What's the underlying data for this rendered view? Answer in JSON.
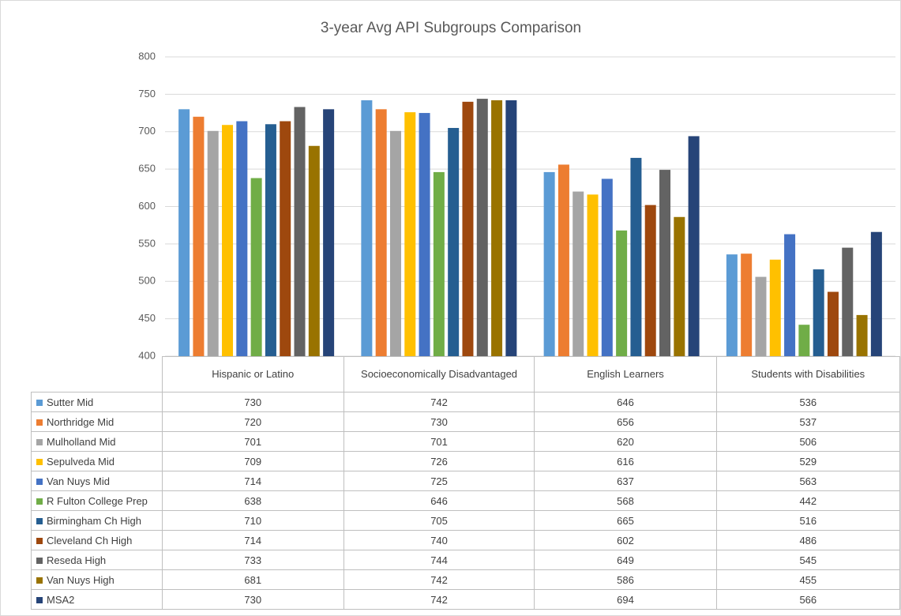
{
  "chart_data": {
    "type": "bar",
    "title": "3-year Avg API Subgroups Comparison",
    "categories": [
      "Hispanic or Latino",
      "Socioeconomically Disadvantaged",
      "English Learners",
      "Students with Disabilities"
    ],
    "ylim": [
      400,
      800
    ],
    "yticks": [
      400,
      450,
      500,
      550,
      600,
      650,
      700,
      750,
      800
    ],
    "grid": true,
    "series": [
      {
        "name": "Sutter Mid",
        "color": "#5b9bd5",
        "values": [
          730,
          742,
          646,
          536
        ]
      },
      {
        "name": "Northridge Mid",
        "color": "#ed7d31",
        "values": [
          720,
          730,
          656,
          537
        ]
      },
      {
        "name": "Mulholland Mid",
        "color": "#a5a5a5",
        "values": [
          701,
          701,
          620,
          506
        ]
      },
      {
        "name": "Sepulveda Mid",
        "color": "#ffc000",
        "values": [
          709,
          726,
          616,
          529
        ]
      },
      {
        "name": "Van Nuys Mid",
        "color": "#4472c4",
        "values": [
          714,
          725,
          637,
          563
        ]
      },
      {
        "name": "R Fulton College Prep",
        "color": "#70ad47",
        "values": [
          638,
          646,
          568,
          442
        ]
      },
      {
        "name": "Birmingham Ch High",
        "color": "#255e91",
        "values": [
          710,
          705,
          665,
          516
        ]
      },
      {
        "name": "Cleveland Ch High",
        "color": "#9e480e",
        "values": [
          714,
          740,
          602,
          486
        ]
      },
      {
        "name": "Reseda High",
        "color": "#636363",
        "values": [
          733,
          744,
          649,
          545
        ]
      },
      {
        "name": "Van Nuys High",
        "color": "#997300",
        "values": [
          681,
          742,
          586,
          455
        ]
      },
      {
        "name": "MSA2",
        "color": "#264478",
        "values": [
          730,
          742,
          694,
          566
        ]
      }
    ]
  }
}
